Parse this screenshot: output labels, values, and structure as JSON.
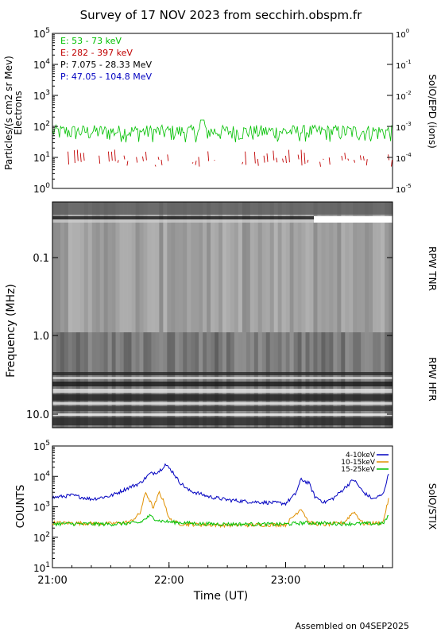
{
  "page": {
    "title": "Survey of 17 NOV 2023 from secchirh.obspm.fr",
    "footer": "Assembled on 04SEP2025"
  },
  "chart_data": [
    {
      "type": "line",
      "panel": "particles",
      "ylabel": "Particles/(s cm2 sr Mev)",
      "ylabel2": "Electrons",
      "right_label": "SolO/EPD (ions)",
      "yscale": "log",
      "ylim": [
        1,
        100000
      ],
      "y_ticks": [
        "10^0",
        "10^1",
        "10^2",
        "10^3",
        "10^4",
        "10^5"
      ],
      "y2_ticks": [
        "10^-5",
        "10^-4",
        "10^-3",
        "10^-2",
        "10^-1",
        "10^0"
      ],
      "xlim": [
        "21:00",
        "23:55"
      ],
      "legend": [
        {
          "label": "E: 53 - 73 keV",
          "color": "#00c000"
        },
        {
          "label": "E: 282 - 397 keV",
          "color": "#c00000"
        },
        {
          "label": "P: 7.075 - 28.33 MeV",
          "color": "#000000"
        },
        {
          "label": "P: 47.05 - 104.8 MeV",
          "color": "#0000c0"
        }
      ],
      "series": [
        {
          "name": "E: 53 - 73 keV",
          "color": "#00c000",
          "typical_range": [
            30,
            150
          ],
          "peak": {
            "x": "22:17",
            "y": 160
          }
        },
        {
          "name": "E: 282 - 397 keV",
          "color": "#c00000",
          "typical_range": [
            5,
            18
          ]
        }
      ]
    },
    {
      "type": "heatmap",
      "panel": "radio",
      "ylabel": "Frequency (MHz)",
      "yscale": "log",
      "y_ticks": [
        "0.1",
        "1.0",
        "10.0"
      ],
      "right_labels": [
        "RPW TNR",
        "RPW HFR"
      ],
      "colormap": "grayscale"
    },
    {
      "type": "line",
      "panel": "stix",
      "ylabel": "COUNTS",
      "xlabel": "Time (UT)",
      "right_label": "SolO/STIX",
      "yscale": "log",
      "ylim": [
        10,
        100000
      ],
      "y_ticks": [
        "10^1",
        "10^2",
        "10^3",
        "10^4",
        "10^5"
      ],
      "x_ticks": [
        "21:00",
        "22:00",
        "23:00"
      ],
      "series": [
        {
          "name": "4-10keV",
          "color": "#0000c0",
          "x": [
            "21:00",
            "21:10",
            "21:20",
            "21:30",
            "21:40",
            "21:45",
            "21:50",
            "21:55",
            "21:58",
            "22:02",
            "22:05",
            "22:10",
            "22:15",
            "22:20",
            "22:30",
            "22:40",
            "22:50",
            "23:00",
            "23:05",
            "23:08",
            "23:12",
            "23:15",
            "23:20",
            "23:25",
            "23:30",
            "23:35",
            "23:40",
            "23:45",
            "23:50",
            "23:53"
          ],
          "y": [
            2000,
            2400,
            1800,
            2300,
            4500,
            6000,
            12000,
            15000,
            25000,
            14000,
            7000,
            3500,
            2800,
            2200,
            1700,
            1500,
            1400,
            1300,
            2600,
            8000,
            6000,
            2200,
            1400,
            2000,
            4000,
            8000,
            3000,
            1800,
            2500,
            12000
          ]
        },
        {
          "name": "10-15keV",
          "color": "#e09000",
          "x": [
            "21:00",
            "21:30",
            "21:40",
            "21:45",
            "21:48",
            "21:52",
            "21:55",
            "21:58",
            "22:00",
            "22:05",
            "22:15",
            "22:30",
            "23:00",
            "23:08",
            "23:12",
            "23:20",
            "23:30",
            "23:35",
            "23:40",
            "23:50",
            "23:53"
          ],
          "y": [
            300,
            280,
            320,
            600,
            3000,
            900,
            3000,
            1200,
            400,
            280,
            260,
            250,
            260,
            900,
            300,
            260,
            300,
            700,
            280,
            300,
            1800
          ]
        },
        {
          "name": "15-25keV",
          "color": "#00c000",
          "x": [
            "21:00",
            "21:30",
            "21:45",
            "21:50",
            "21:55",
            "22:00",
            "22:15",
            "22:30",
            "23:00",
            "23:10",
            "23:30",
            "23:50",
            "23:53"
          ],
          "y": [
            280,
            270,
            300,
            500,
            350,
            320,
            280,
            270,
            270,
            300,
            280,
            280,
            500
          ]
        }
      ]
    }
  ]
}
